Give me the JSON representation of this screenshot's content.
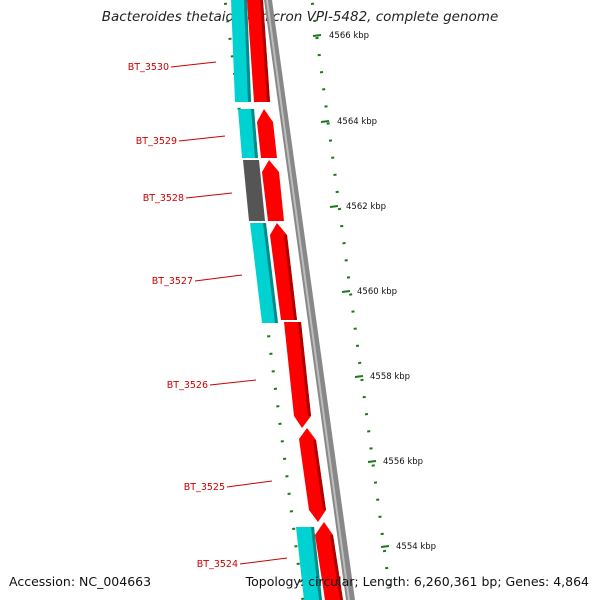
{
  "title": "Bacteroides thetaiotaomicron VPI-5482, complete genome",
  "accession": "Accession: NC_004663",
  "topology": "Topology: circular; Length: 6,260,361 bp; Genes: 4,864",
  "colors": {
    "forward_gene": "#ff0000",
    "reverse_gene": "#00d2d2",
    "pseudo_gene": "#555555",
    "backbone": "#888888",
    "tick": "#1a7a1a",
    "label": "#cc0000"
  },
  "genes": [
    {
      "id": "BT_3530",
      "label": "BT_3530",
      "strand": "reverse",
      "type": "cds"
    },
    {
      "id": "BT_3529",
      "label": "BT_3529",
      "strand": "reverse",
      "type": "cds"
    },
    {
      "id": "BT_3528",
      "label": "BT_3528",
      "strand": "reverse",
      "type": "pseudo"
    },
    {
      "id": "BT_3527",
      "label": "BT_3527",
      "strand": "reverse",
      "type": "cds"
    },
    {
      "id": "BT_3526",
      "label": "BT_3526",
      "strand": "forward",
      "type": "cds"
    },
    {
      "id": "BT_3525",
      "label": "BT_3525",
      "strand": "forward",
      "type": "cds"
    },
    {
      "id": "BT_3524",
      "label": "BT_3524",
      "strand": "reverse",
      "type": "cds"
    }
  ],
  "scale_ticks": [
    "4566 kbp",
    "4564 kbp",
    "4562 kbp",
    "4560 kbp",
    "4558 kbp",
    "4556 kbp",
    "4554 kbp"
  ]
}
